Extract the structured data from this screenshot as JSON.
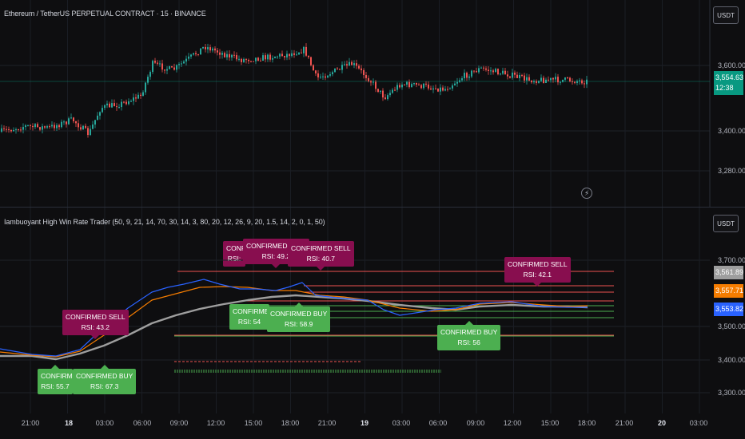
{
  "main_pane": {
    "title": "Ethereum / TetherUS PERPETUAL CONTRACT · 15 · BINANCE",
    "currency_button": "USDT",
    "price_axis": [
      "3,600.00",
      "3,400.00",
      "3,280.00"
    ],
    "last_price": "3,554.63",
    "countdown": "12:38",
    "alert_icon": "lightning-icon"
  },
  "indicator_pane": {
    "title": "Iambuoyant High Win Rate Trader (50, 9, 21, 14, 70, 30, 14, 3, 80, 20, 12, 26, 9, 20, 1.5, 14, 2, 0, 1, 50)",
    "currency_button": "USDT",
    "price_axis": [
      "3,700.00",
      "3,500.00",
      "3,400.00",
      "3,300.00"
    ],
    "price_tags": [
      {
        "value": "3,561.89",
        "color": "#9e9e9e"
      },
      {
        "value": "3,557.71",
        "color": "#f57c00"
      },
      {
        "value": "3,553.82",
        "color": "#2962ff"
      }
    ],
    "signals": [
      {
        "type": "sell",
        "line1": "CONFIRMED SELL",
        "line2": "RSI: 43.2"
      },
      {
        "type": "sell",
        "line1": "CONFIRMED SELL",
        "line2": "RSI: 49.2"
      },
      {
        "type": "sell",
        "line1": "CONFIRMED SELL",
        "line2": "RSI: 40.7"
      },
      {
        "type": "sell",
        "line1": "CONFIRMED SELL",
        "line2": "RSI: 42.1"
      },
      {
        "type": "sell",
        "line1": "CONFIRMED S",
        "line2": "RSI:"
      },
      {
        "type": "buy",
        "line1": "CONFIRMED BI",
        "line2": "RSI: 55.7"
      },
      {
        "type": "buy",
        "line1": "CONFIRMED BUY",
        "line2": "RSI: 67.3"
      },
      {
        "type": "buy",
        "line1": "CONFIRMED BU",
        "line2": "RSI: 54"
      },
      {
        "type": "buy",
        "line1": "CONFIRMED BUY",
        "line2": "RSI: 58.9"
      },
      {
        "type": "buy",
        "line1": "CONFIRMED BUY",
        "line2": "RSI: 56"
      }
    ]
  },
  "time_axis": [
    "21:00",
    "18",
    "03:00",
    "06:00",
    "09:00",
    "12:00",
    "15:00",
    "18:00",
    "21:00",
    "19",
    "03:00",
    "06:00",
    "09:00",
    "12:00",
    "15:00",
    "18:00",
    "21:00",
    "20",
    "03:00"
  ],
  "colors": {
    "background": "#0e0e10",
    "up": "#26a69a",
    "down": "#ef5350",
    "ema_fast": "#2962ff",
    "ema_mid": "#f57c00",
    "ema_slow": "#9e9e9e",
    "last_price": "#089981"
  }
}
